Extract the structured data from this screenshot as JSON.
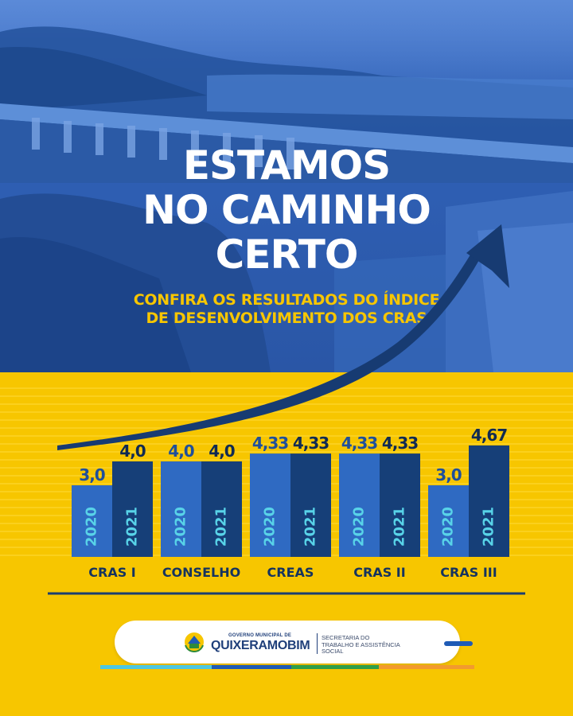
{
  "headline": {
    "line1": "ESTAMOS",
    "line2": "NO CAMINHO",
    "line3": "CERTO"
  },
  "subheadline": {
    "line1": "CONFIRA OS RESULTADOS DO ÍNDICE",
    "line2": "DE DESENVOLVIMENTO DOS CRAS"
  },
  "chart_data": {
    "type": "bar",
    "categories": [
      "CRAS I",
      "CONSELHO",
      "CREAS",
      "CRAS II",
      "CRAS III"
    ],
    "series": [
      {
        "name": "2020",
        "values": [
          3.0,
          4.0,
          4.33,
          4.33,
          3.0
        ],
        "labels": [
          "3,0",
          "4,0",
          "4,33",
          "4,33",
          "3,0"
        ],
        "color": "#2f6ac2"
      },
      {
        "name": "2021",
        "values": [
          4.0,
          4.0,
          4.33,
          4.33,
          4.67
        ],
        "labels": [
          "4,0",
          "4,0",
          "4,33",
          "4,33",
          "4,67"
        ],
        "color": "#163f78"
      }
    ],
    "ylim": [
      0,
      5
    ],
    "grid": true
  },
  "footer": {
    "government_top": "GOVERNO MUNICIPAL DE",
    "municipality": "QUIXERAMOBIM",
    "secretaria_line1": "SECRETARIA DO",
    "secretaria_line2": "TRABALHO E ASSISTÊNCIA",
    "secretaria_line3": "SOCIAL"
  },
  "colors": {
    "yellow": "#f7c600",
    "blue_light": "#2f6ac2",
    "blue_dark": "#163f78",
    "value_2020": "#1f4f9a",
    "value_2021": "#102a52",
    "year_text": "#58d3e8"
  }
}
